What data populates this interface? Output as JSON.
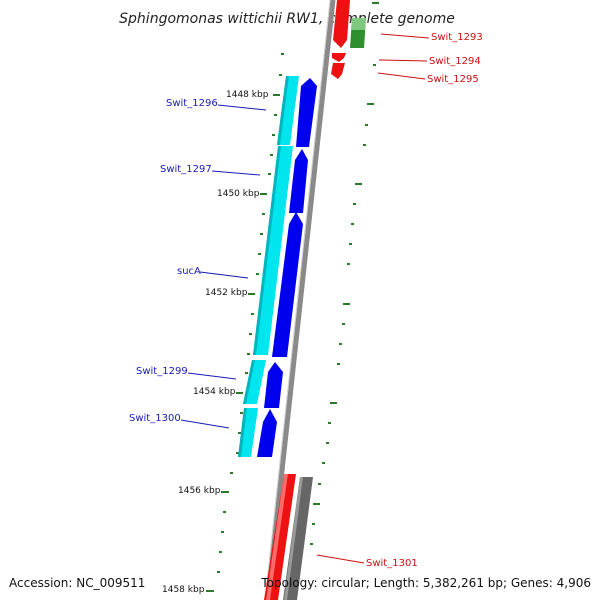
{
  "title": "Sphingomonas wittichii RW1, complete genome",
  "accession": "Accession: NC_009511",
  "topology": "Topology: circular; Length: 5,382,261 bp; Genes: 4,906",
  "kbp_ticks": [
    {
      "label": "1448 kbp"
    },
    {
      "label": "1450 kbp"
    },
    {
      "label": "1452 kbp"
    },
    {
      "label": "1454 kbp"
    },
    {
      "label": "1456 kbp"
    },
    {
      "label": "1458 kbp"
    }
  ],
  "genes_left": [
    {
      "name": "Swit_1296"
    },
    {
      "name": "Swit_1297"
    },
    {
      "name": "sucA"
    },
    {
      "name": "Swit_1299"
    },
    {
      "name": "Swit_1300"
    }
  ],
  "genes_right": [
    {
      "name": "Swit_1293"
    },
    {
      "name": "Swit_1294"
    },
    {
      "name": "Swit_1295"
    },
    {
      "name": "Swit_1301"
    }
  ],
  "colors": {
    "backbone": "#8a8a8a",
    "cds_forward": "#0000ee",
    "feature_forward": "#00e5ee",
    "cds_reverse": "#ee1111",
    "rna": "#2f8f2f",
    "gray_feature": "#666666",
    "tick": "#2a7a2a",
    "label_blue": "#1a1ab4",
    "label_red": "#cc1111"
  }
}
